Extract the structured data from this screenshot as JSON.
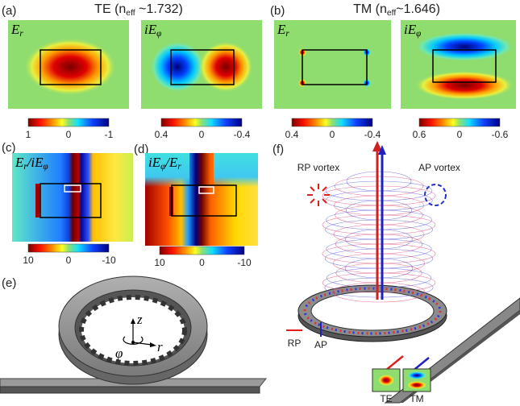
{
  "panels": [
    {
      "label": "(a)",
      "title": [
        "TE (n",
        "eff",
        " ~1.732)"
      ],
      "maps": [
        {
          "symbol": [
            "E",
            "r"
          ],
          "colorbar": [
            "1",
            "0",
            "-1"
          ]
        },
        {
          "symbol": [
            "iE",
            "φ"
          ],
          "colorbar": [
            "0.4",
            "0",
            "-0.4"
          ]
        }
      ]
    },
    {
      "label": "(b)",
      "title": [
        "TM (n",
        "eff",
        "~1.646)"
      ],
      "maps": [
        {
          "symbol": [
            "E",
            "r"
          ],
          "colorbar": [
            "0.4",
            "0",
            "-0.4"
          ]
        },
        {
          "symbol": [
            "iE",
            "φ"
          ],
          "colorbar": [
            "0.6",
            "0",
            "-0.6"
          ]
        }
      ]
    },
    {
      "label": "(c)",
      "maps": [
        {
          "symbol": [
            "E",
            "r",
            "/iE",
            "φ"
          ],
          "colorbar": [
            "10",
            "0",
            "-10"
          ]
        }
      ]
    },
    {
      "label": "(d)",
      "maps": [
        {
          "symbol": [
            "iE",
            "φ",
            "/E",
            "r"
          ],
          "colorbar": [
            "10",
            "0",
            "-10"
          ]
        }
      ]
    },
    {
      "label": "(e)",
      "axes": {
        "z": "z",
        "r": "r",
        "phi": "φ"
      }
    },
    {
      "label": "(f)",
      "vortex_labels": [
        "RP vortex",
        "AP vortex"
      ],
      "legend": [
        "RP",
        "AP"
      ],
      "modes": [
        "TE",
        "TM"
      ]
    }
  ]
}
